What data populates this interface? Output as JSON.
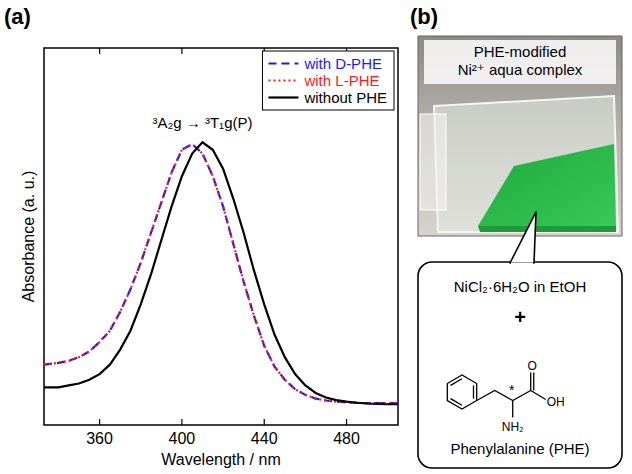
{
  "chart_data": {
    "type": "line",
    "panel_label": "(a)",
    "x_label": "Wavelength / nm",
    "y_label": "Absorbance (a. u.)",
    "annotation": "³A₂g → ³T₁g(P)",
    "x": [
      333,
      340,
      345,
      350,
      355,
      360,
      365,
      370,
      375,
      380,
      385,
      390,
      395,
      400,
      405,
      410,
      415,
      420,
      425,
      430,
      435,
      440,
      445,
      450,
      455,
      460,
      465,
      470,
      475,
      480,
      485,
      490,
      495,
      500,
      505
    ],
    "series": [
      {
        "name": "with D-PHE",
        "color": "#1a1aff",
        "line_style": "dashed",
        "values": [
          0.16,
          0.165,
          0.17,
          0.18,
          0.195,
          0.22,
          0.25,
          0.3,
          0.36,
          0.43,
          0.51,
          0.59,
          0.67,
          0.73,
          0.745,
          0.72,
          0.66,
          0.58,
          0.48,
          0.38,
          0.29,
          0.21,
          0.155,
          0.12,
          0.095,
          0.08,
          0.07,
          0.065,
          0.062,
          0.06,
          0.059,
          0.058,
          0.058,
          0.058,
          0.058
        ]
      },
      {
        "name": "with L-PHE",
        "color": "#ff1a1a",
        "line_style": "dotted",
        "values": [
          0.16,
          0.165,
          0.17,
          0.18,
          0.195,
          0.22,
          0.25,
          0.3,
          0.36,
          0.43,
          0.51,
          0.59,
          0.67,
          0.73,
          0.745,
          0.72,
          0.66,
          0.58,
          0.48,
          0.38,
          0.29,
          0.21,
          0.155,
          0.12,
          0.095,
          0.08,
          0.07,
          0.065,
          0.062,
          0.06,
          0.059,
          0.058,
          0.058,
          0.058,
          0.058
        ]
      },
      {
        "name": "without PHE",
        "color": "#000000",
        "line_style": "solid",
        "values": [
          0.1,
          0.1,
          0.105,
          0.11,
          0.12,
          0.135,
          0.16,
          0.2,
          0.25,
          0.32,
          0.4,
          0.49,
          0.58,
          0.66,
          0.72,
          0.75,
          0.73,
          0.68,
          0.6,
          0.51,
          0.41,
          0.32,
          0.24,
          0.18,
          0.135,
          0.105,
          0.085,
          0.073,
          0.066,
          0.062,
          0.059,
          0.057,
          0.056,
          0.055,
          0.055
        ]
      }
    ],
    "xlim": [
      333,
      505
    ],
    "xticks": [
      360,
      400,
      440,
      480
    ],
    "ylim": [
      0,
      1
    ],
    "yticks": [],
    "tick_labels": "x",
    "grid": false,
    "legend": "top-right"
  },
  "panel_b": {
    "label": "(b)",
    "photo_caption": [
      "PHE-modified",
      "Ni²⁺ aqua complex"
    ],
    "reagent": "NiCl₂·6H₂O in EtOH",
    "plus": "+",
    "structure_atoms": [
      "O",
      "OH",
      "NH₂"
    ],
    "chiral_mark": "*",
    "compound": "Phenylalanine (PHE)"
  }
}
